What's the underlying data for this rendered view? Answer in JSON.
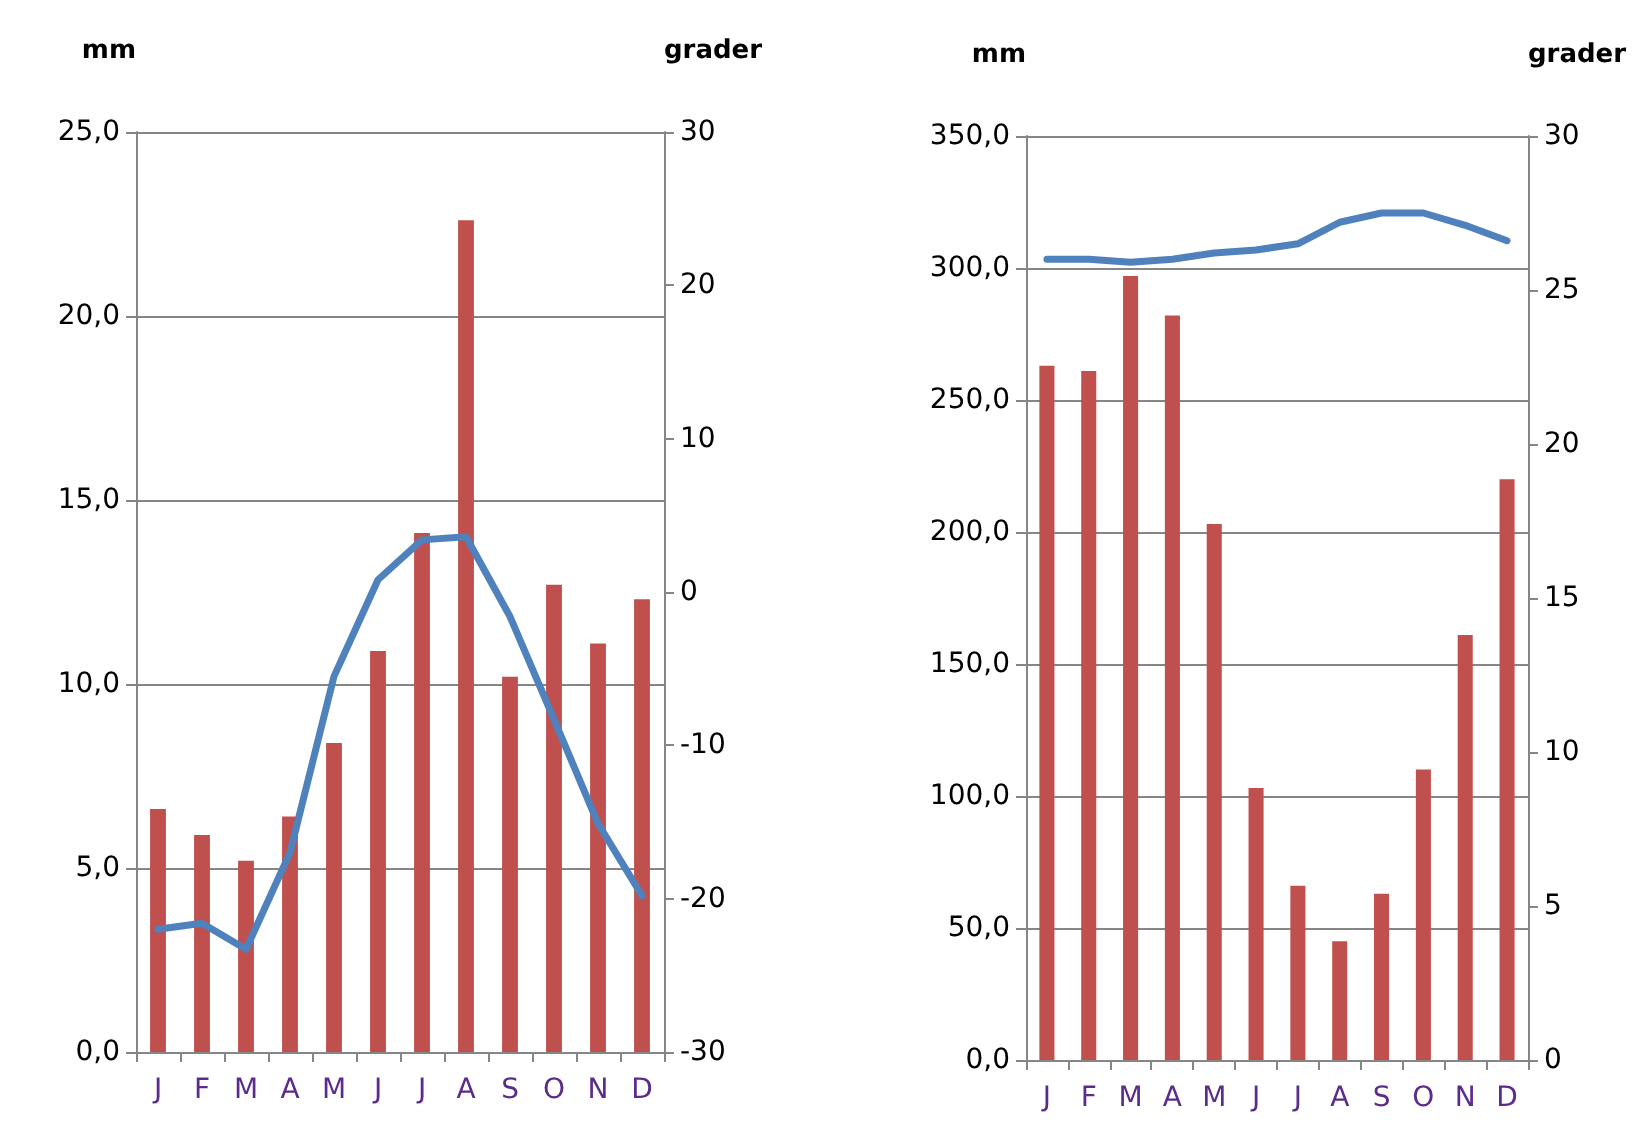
{
  "chart_data": [
    {
      "type": "bar",
      "categories": [
        "J",
        "F",
        "M",
        "A",
        "M",
        "J",
        "J",
        "A",
        "S",
        "O",
        "N",
        "D"
      ],
      "ylabel": "mm",
      "y2label": "grader",
      "grid": "y",
      "marker": "none",
      "line_style": "solid",
      "ylim": [
        0,
        25
      ],
      "yticks": [
        {
          "value": 0,
          "label": "0,0"
        },
        {
          "value": 5,
          "label": "5,0"
        },
        {
          "value": 10,
          "label": "10,0"
        },
        {
          "value": 15,
          "label": "15,0"
        },
        {
          "value": 20,
          "label": "20,0"
        },
        {
          "value": 25,
          "label": "25,0"
        }
      ],
      "y2lim": [
        -30,
        30
      ],
      "y2ticks": [
        -30,
        -20,
        -10,
        0,
        10,
        20,
        30
      ],
      "series": [
        {
          "color": "#c0504d",
          "values": [
            6.6,
            5.9,
            5.2,
            6.4,
            8.4,
            10.9,
            14.1,
            22.6,
            10.2,
            12.7,
            11.1,
            12.3
          ]
        },
        {
          "type": "line",
          "axis": "y2",
          "color": "#4f81bd",
          "values": [
            -22.0,
            -21.6,
            -23.3,
            -17.0,
            -5.5,
            0.8,
            3.4,
            3.6,
            -1.6,
            -8.3,
            -15.1,
            -19.8
          ]
        }
      ]
    },
    {
      "type": "bar",
      "categories": [
        "J",
        "F",
        "M",
        "A",
        "M",
        "J",
        "J",
        "A",
        "S",
        "O",
        "N",
        "D"
      ],
      "ylabel": "mm",
      "y2label": "grader",
      "grid": "y",
      "marker": "none",
      "line_style": "solid",
      "ylim": [
        0,
        350
      ],
      "yticks": [
        {
          "value": 0,
          "label": "0,0"
        },
        {
          "value": 50,
          "label": "50,0"
        },
        {
          "value": 100,
          "label": "100,0"
        },
        {
          "value": 150,
          "label": "150,0"
        },
        {
          "value": 200,
          "label": "200,0"
        },
        {
          "value": 250,
          "label": "250,0"
        },
        {
          "value": 300,
          "label": "300,0"
        },
        {
          "value": 350,
          "label": "350,0"
        }
      ],
      "y2lim": [
        0,
        30
      ],
      "y2ticks": [
        0,
        5,
        10,
        15,
        20,
        25,
        30
      ],
      "series": [
        {
          "color": "#c0504d",
          "values": [
            263,
            261,
            297,
            282,
            203,
            103,
            66,
            45,
            63,
            110,
            161,
            220
          ]
        },
        {
          "type": "line",
          "axis": "y2",
          "color": "#4f81bd",
          "values": [
            26.0,
            26.0,
            25.9,
            26.0,
            26.2,
            26.3,
            26.5,
            27.2,
            27.5,
            27.5,
            27.1,
            26.6
          ]
        }
      ]
    }
  ]
}
